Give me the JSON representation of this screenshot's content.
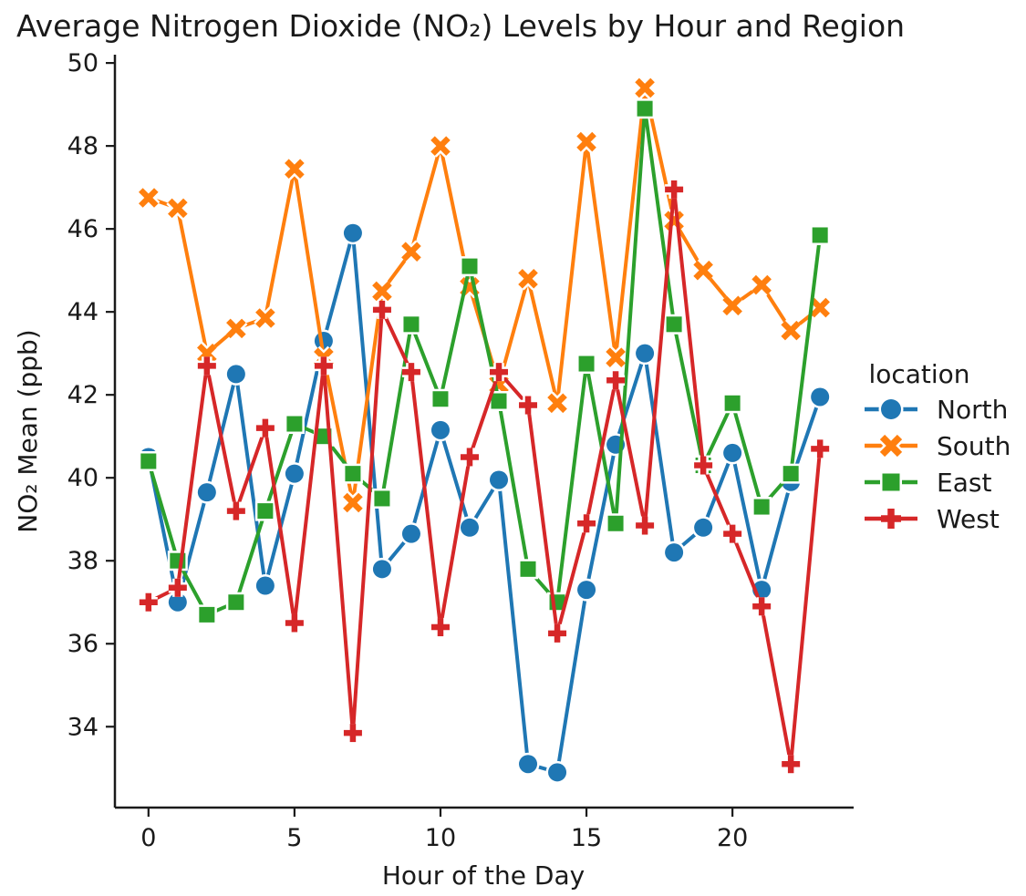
{
  "figure": {
    "title": "Average Nitrogen Dioxide (NO₂) Levels by Hour and Region",
    "xlabel": "Hour of the Day",
    "ylabel": "NO₂ Mean (ppb)",
    "legend_title": "location"
  },
  "chart_data": {
    "type": "line",
    "title": "Average Nitrogen Dioxide (NO₂) Levels by Hour and Region",
    "xlabel": "Hour of the Day",
    "ylabel": "NO₂ Mean (ppb)",
    "legend_title": "location",
    "legend_position": "center right",
    "grid": false,
    "background": "#ffffff",
    "axis_color": "#1a1a1a",
    "x": [
      0,
      1,
      2,
      3,
      4,
      5,
      6,
      7,
      8,
      9,
      10,
      11,
      12,
      13,
      14,
      15,
      16,
      17,
      18,
      19,
      20,
      21,
      22,
      23
    ],
    "xticks": [
      0,
      5,
      10,
      15,
      20
    ],
    "yticks": [
      34,
      36,
      38,
      40,
      42,
      44,
      46,
      48,
      50
    ],
    "xlim": [
      -1.15,
      24.15
    ],
    "ylim": [
      32.05,
      50.2
    ],
    "series": [
      {
        "name": "North",
        "color": "#1f77b4",
        "marker": "circle",
        "values": [
          40.5,
          37.0,
          39.65,
          42.5,
          37.4,
          40.1,
          43.3,
          45.9,
          37.8,
          38.65,
          41.15,
          38.8,
          39.95,
          33.1,
          32.9,
          37.3,
          40.8,
          43.0,
          38.2,
          38.8,
          40.6,
          37.3,
          39.9,
          41.95
        ]
      },
      {
        "name": "South",
        "color": "#ff7f0e",
        "marker": "x",
        "values": [
          46.75,
          46.5,
          43.0,
          43.6,
          43.85,
          47.45,
          42.9,
          39.4,
          44.5,
          45.45,
          48.0,
          44.6,
          42.25,
          44.8,
          41.8,
          48.1,
          42.9,
          49.4,
          46.2,
          45.0,
          44.15,
          44.65,
          43.55,
          44.1
        ]
      },
      {
        "name": "East",
        "color": "#2ca02c",
        "marker": "square",
        "values": [
          40.4,
          38.0,
          36.7,
          37.0,
          39.2,
          41.3,
          41.0,
          40.1,
          39.5,
          43.7,
          41.9,
          45.1,
          41.85,
          37.8,
          37.0,
          42.75,
          38.9,
          48.9,
          43.7,
          40.3,
          41.8,
          39.3,
          40.1,
          45.85
        ]
      },
      {
        "name": "West",
        "color": "#d62728",
        "marker": "plus",
        "values": [
          37.0,
          37.35,
          42.7,
          39.2,
          41.2,
          36.5,
          42.7,
          33.85,
          44.05,
          42.55,
          36.4,
          40.5,
          42.55,
          41.75,
          36.25,
          38.9,
          42.35,
          38.85,
          46.95,
          40.3,
          38.65,
          36.9,
          33.1,
          40.7
        ]
      }
    ]
  }
}
